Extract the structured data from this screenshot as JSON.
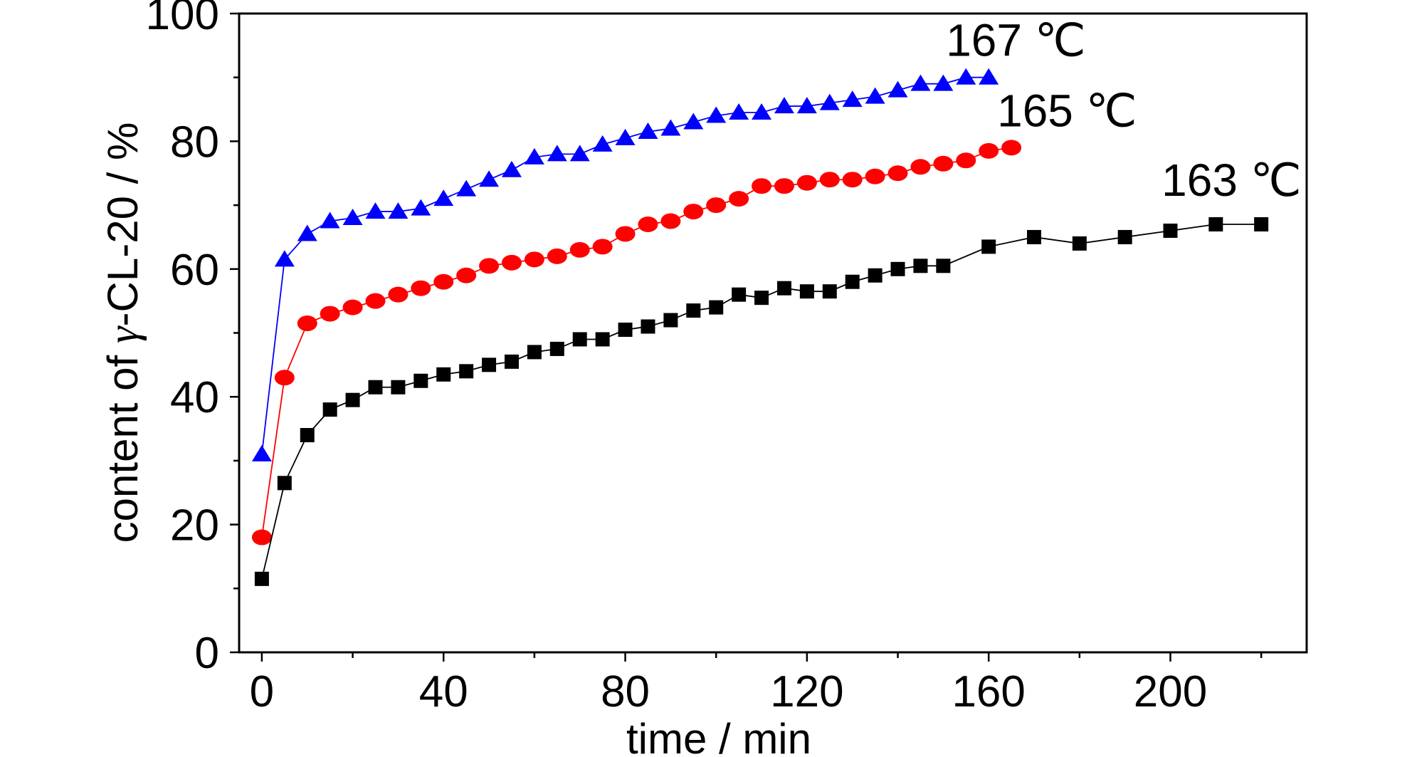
{
  "chart_data": {
    "type": "line",
    "title": "",
    "xlabel": "time / min",
    "ylabel_parts": [
      "content of ",
      "γ",
      "-CL-20 / %"
    ],
    "xlim": [
      -5,
      230
    ],
    "ylim": [
      0,
      100
    ],
    "xticks": [
      0,
      40,
      80,
      120,
      160,
      200
    ],
    "yticks": [
      0,
      20,
      40,
      60,
      80,
      100
    ],
    "x_minor_step": 20,
    "y_minor_step": 10,
    "grid": false,
    "legend": "none",
    "series": [
      {
        "name": "167 ℃",
        "color": "#0000ff",
        "marker": "triangle",
        "x": [
          0,
          5,
          10,
          15,
          20,
          25,
          30,
          35,
          40,
          45,
          50,
          55,
          60,
          65,
          70,
          75,
          80,
          85,
          90,
          95,
          100,
          105,
          110,
          115,
          120,
          125,
          130,
          135,
          140,
          145,
          150,
          155,
          160
        ],
        "y": [
          31,
          61.5,
          65.5,
          67.5,
          68,
          69,
          69,
          69.5,
          71,
          72.5,
          74,
          75.5,
          77.5,
          78,
          78,
          79.5,
          80.5,
          81.5,
          82,
          83,
          84,
          84.5,
          84.5,
          85.5,
          85.5,
          86,
          86.5,
          87,
          88,
          89,
          89,
          90,
          90
        ]
      },
      {
        "name": "165 ℃",
        "color": "#ff0000",
        "marker": "circle",
        "x": [
          0,
          5,
          10,
          15,
          20,
          25,
          30,
          35,
          40,
          45,
          50,
          55,
          60,
          65,
          70,
          75,
          80,
          85,
          90,
          95,
          100,
          105,
          110,
          115,
          120,
          125,
          130,
          135,
          140,
          145,
          150,
          155,
          160,
          165
        ],
        "y": [
          18,
          43,
          51.5,
          53,
          54,
          55,
          56,
          57,
          58,
          59,
          60.5,
          61,
          61.5,
          62,
          63,
          63.5,
          65.5,
          67,
          67.5,
          69,
          70,
          71,
          73,
          73,
          73.5,
          74,
          74,
          74.5,
          75,
          76,
          76.5,
          77,
          78.5,
          79
        ]
      },
      {
        "name": "163 ℃",
        "color": "#000000",
        "marker": "square",
        "x": [
          0,
          5,
          10,
          15,
          20,
          25,
          30,
          35,
          40,
          45,
          50,
          55,
          60,
          65,
          70,
          75,
          80,
          85,
          90,
          95,
          100,
          105,
          110,
          115,
          120,
          125,
          130,
          135,
          140,
          145,
          150,
          160,
          170,
          180,
          190,
          200,
          210,
          220
        ],
        "y": [
          11.5,
          26.5,
          34,
          38,
          39.5,
          41.5,
          41.5,
          42.5,
          43.5,
          44,
          45,
          45.5,
          47,
          47.5,
          49,
          49,
          50.5,
          51,
          52,
          53.5,
          54,
          56,
          55.5,
          57,
          56.5,
          56.5,
          58,
          59,
          60,
          60.5,
          60.5,
          63.5,
          65,
          64,
          65,
          66,
          67,
          67
        ]
      }
    ]
  }
}
